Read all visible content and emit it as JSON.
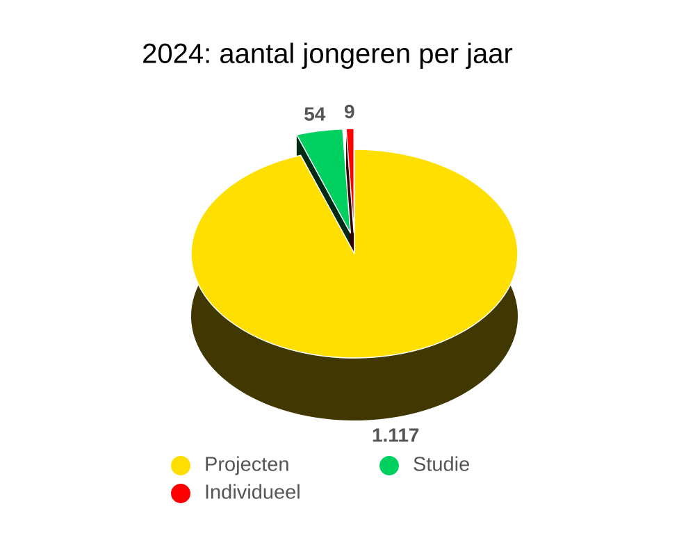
{
  "chart_data": {
    "type": "pie",
    "title": "2024: aantal jongeren per jaar",
    "series": [
      {
        "name": "Projecten",
        "color": "#ffdf00"
      },
      {
        "name": "Studie",
        "color": "#00d060"
      },
      {
        "name": "Individueel",
        "color": "#ff0000"
      }
    ],
    "values": [
      1117,
      54,
      9
    ],
    "value_labels": [
      "1.117",
      "54",
      "9"
    ]
  }
}
